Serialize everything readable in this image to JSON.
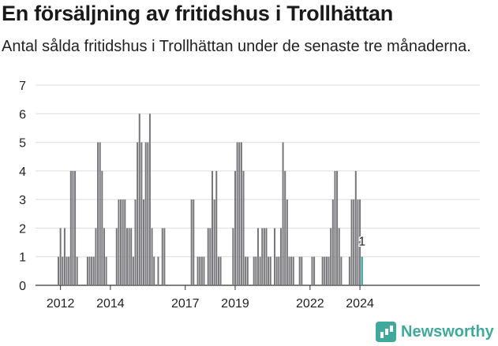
{
  "header": {
    "title": "En försäljning av fritidshus i Trollhättan",
    "subtitle": "Antal sålda fritidshus i Trollhättan under de senaste tre månaderna."
  },
  "brand": {
    "name": "Newsworthy",
    "color": "#3fa99b"
  },
  "chart_data": {
    "type": "bar",
    "title": "En försäljning av fritidshus i Trollhättan",
    "subtitle": "Antal sålda fritidshus i Trollhättan under de senaste tre månaderna.",
    "xlabel": "",
    "ylabel": "",
    "ylim": [
      0,
      7
    ],
    "yticks": [
      0,
      1,
      2,
      3,
      4,
      5,
      6,
      7
    ],
    "grid": true,
    "start_month": "2011-12",
    "xtick_labels": [
      {
        "label": "2012",
        "month": "2012-01"
      },
      {
        "label": "2014",
        "month": "2014-01"
      },
      {
        "label": "2017",
        "month": "2017-01"
      },
      {
        "label": "2019",
        "month": "2019-01"
      },
      {
        "label": "2022",
        "month": "2022-01"
      },
      {
        "label": "2024",
        "month": "2024-01"
      }
    ],
    "bar_color": "#77767b",
    "highlight_color": "#1e9e8d",
    "highlight_label": "1",
    "values": [
      1,
      2,
      1,
      2,
      1,
      1,
      4,
      4,
      4,
      1,
      0,
      0,
      0,
      0,
      1,
      1,
      1,
      1,
      2,
      5,
      5,
      4,
      2,
      1,
      0,
      0,
      0,
      0,
      2,
      3,
      3,
      3,
      3,
      2,
      2,
      2,
      1,
      3,
      5,
      6,
      5,
      3,
      5,
      5,
      6,
      2,
      1,
      0,
      1,
      0,
      2,
      2,
      0,
      0,
      0,
      0,
      0,
      0,
      0,
      0,
      0,
      0,
      0,
      0,
      3,
      3,
      0,
      1,
      1,
      1,
      1,
      0,
      2,
      2,
      4,
      3,
      4,
      1,
      1,
      0,
      0,
      0,
      0,
      0,
      2,
      4,
      5,
      5,
      5,
      4,
      1,
      1,
      0,
      0,
      1,
      1,
      2,
      1,
      2,
      2,
      2,
      1,
      1,
      0,
      2,
      1,
      1,
      2,
      5,
      4,
      3,
      1,
      1,
      1,
      0,
      0,
      1,
      1,
      0,
      0,
      0,
      0,
      1,
      1,
      0,
      0,
      0,
      1,
      1,
      1,
      1,
      2,
      3,
      4,
      4,
      2,
      1,
      0,
      0,
      0,
      1,
      3,
      3,
      4,
      3,
      3,
      1
    ]
  }
}
